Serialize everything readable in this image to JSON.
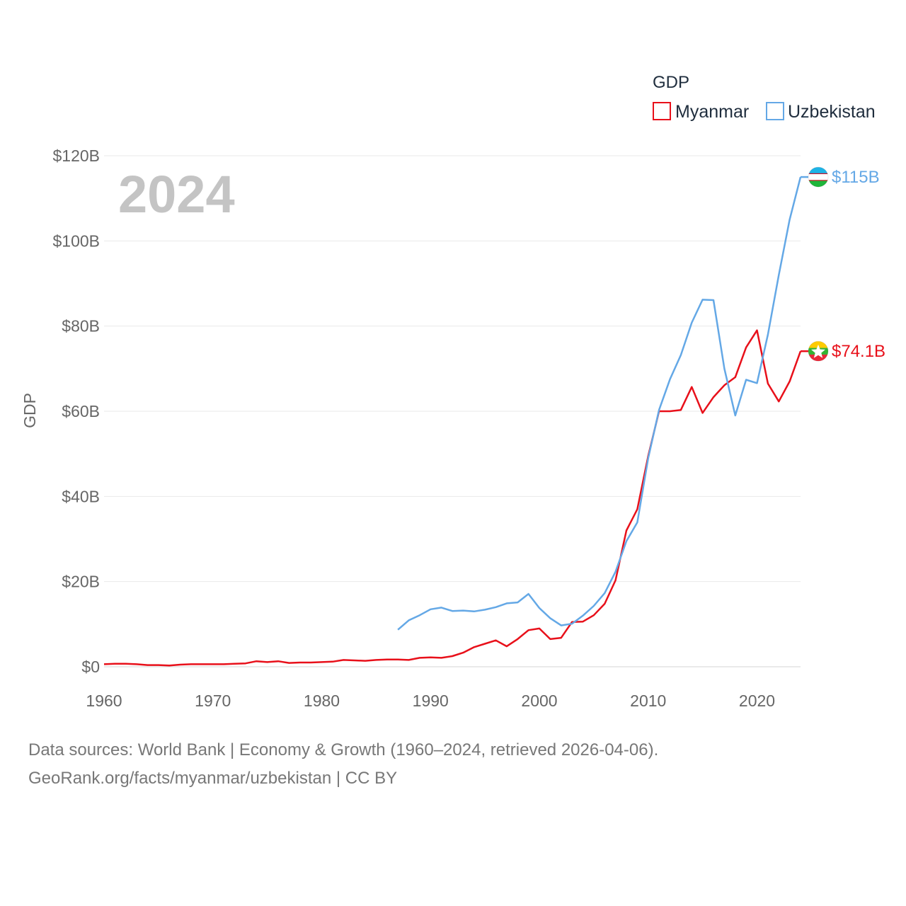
{
  "chart_data": {
    "type": "line",
    "title": "",
    "year_label": "2024",
    "xlabel": "",
    "ylabel": "GDP",
    "xlim": [
      1960,
      2024
    ],
    "ylim": [
      0,
      120
    ],
    "x_ticks": [
      1960,
      1970,
      1980,
      1990,
      2000,
      2010,
      2020
    ],
    "y_ticks": [
      0,
      20,
      40,
      60,
      80,
      100,
      120
    ],
    "y_tick_labels": [
      "$0",
      "$20B",
      "$40B",
      "$60B",
      "$80B",
      "$100B",
      "$120B"
    ],
    "y_unit": "billion USD",
    "grid": true,
    "legend": {
      "title": "GDP",
      "position": "top-right"
    },
    "series": [
      {
        "name": "Myanmar",
        "color": "#e8101a",
        "end_label": "$74.1B",
        "icon": "myanmar-flag-icon",
        "start_year": 1960,
        "values": [
          0.6,
          0.7,
          0.7,
          0.6,
          0.4,
          0.4,
          0.3,
          0.5,
          0.6,
          0.6,
          0.6,
          0.6,
          0.7,
          0.8,
          1.3,
          1.1,
          1.3,
          0.9,
          1.0,
          1.0,
          1.1,
          1.2,
          1.6,
          1.5,
          1.4,
          1.6,
          1.7,
          1.7,
          1.6,
          2.1,
          2.2,
          2.1,
          2.5,
          3.3,
          4.6,
          5.4,
          6.2,
          4.8,
          6.5,
          8.6,
          9.0,
          6.5,
          6.8,
          10.5,
          10.6,
          12.1,
          14.8,
          20.3,
          32.0,
          37.0,
          49.5,
          60.0,
          60.0,
          60.3,
          65.7,
          59.6,
          63.3,
          66.1,
          68.0,
          75.0,
          79.0,
          66.5,
          62.3,
          67.0,
          74.1
        ]
      },
      {
        "name": "Uzbekistan",
        "color": "#64a8e6",
        "end_label": "$115B",
        "icon": "uzbekistan-flag-icon",
        "start_year": 1987,
        "values": [
          8.7,
          10.9,
          12.1,
          13.5,
          13.9,
          13.1,
          13.2,
          13.0,
          13.4,
          14.0,
          14.9,
          15.1,
          17.1,
          13.8,
          11.4,
          9.7,
          10.1,
          12.0,
          14.3,
          17.3,
          22.3,
          29.5,
          33.9,
          49.0,
          60.3,
          67.5,
          73.2,
          80.8,
          86.2,
          86.1,
          70.0,
          59.0,
          67.4,
          66.6,
          78.0,
          92.0,
          105.0,
          115.0
        ]
      }
    ]
  },
  "footer": {
    "line1": "Data sources: World Bank | Economy & Growth (1960–2024, retrieved 2026-04-06).",
    "line2": "GeoRank.org/facts/myanmar/uzbekistan | CC BY"
  }
}
